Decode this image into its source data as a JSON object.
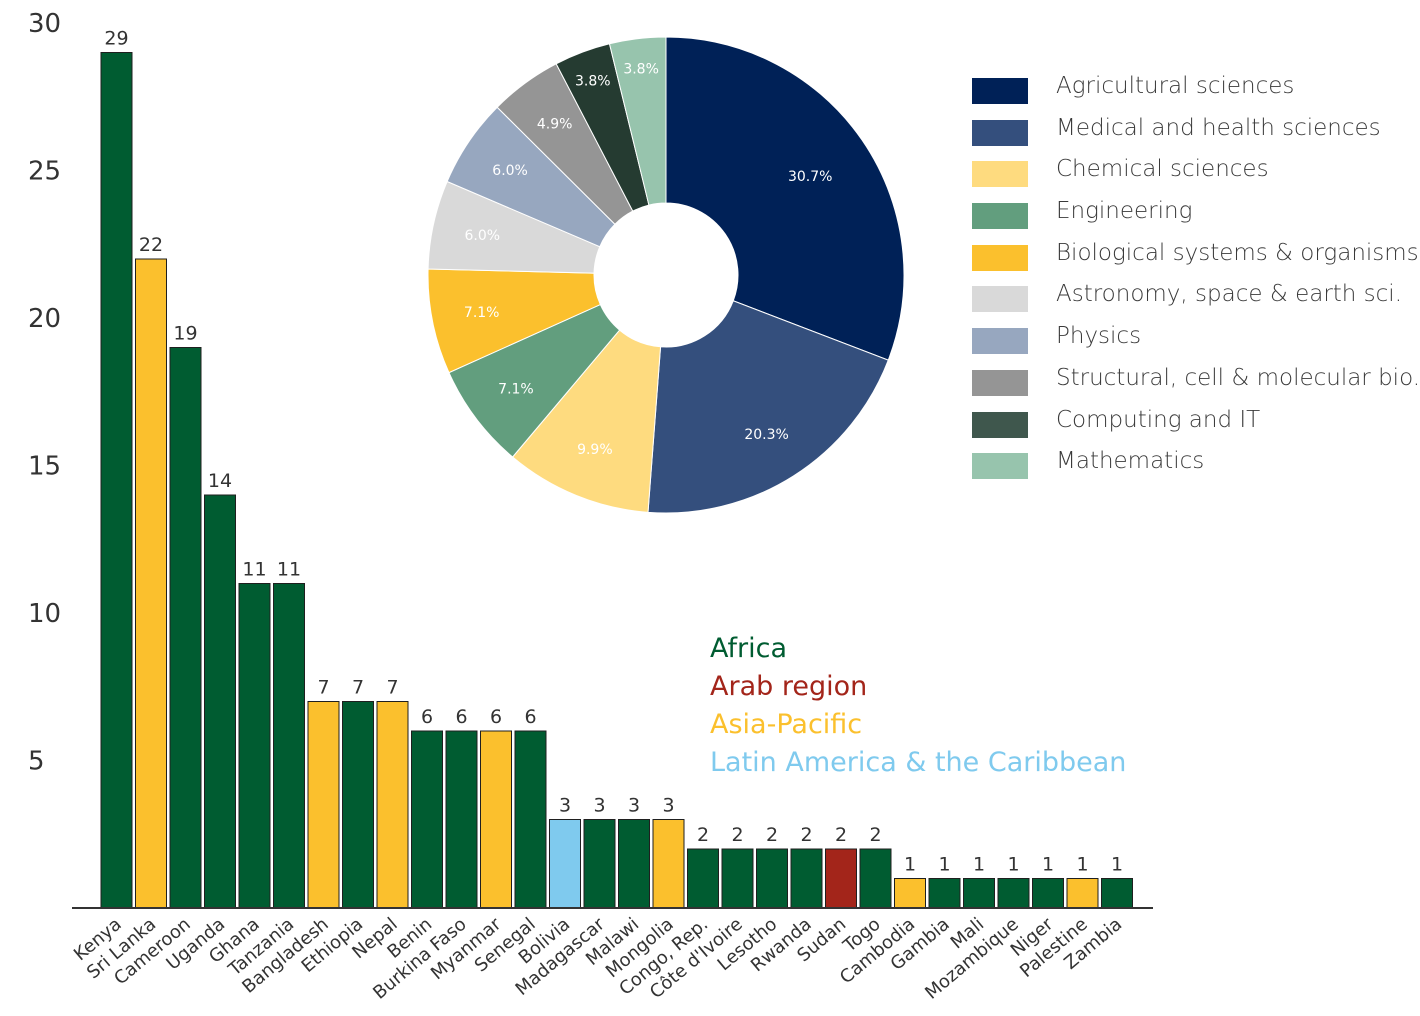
{
  "colors": {
    "africa": "#005c31",
    "arab": "#a3251a",
    "asia": "#fbc02d",
    "latam": "#7fcaee",
    "axis": "#333333"
  },
  "regions": [
    {
      "label": "Africa",
      "color": "#005c31"
    },
    {
      "label": "Arab region",
      "color": "#a3251a"
    },
    {
      "label": "Asia-Pacific",
      "color": "#fbc02d"
    },
    {
      "label": "Latin America & the Caribbean",
      "color": "#7fcaee"
    }
  ],
  "chart_data": [
    {
      "type": "bar",
      "ylim": [
        0,
        30
      ],
      "yticks": [
        5,
        10,
        15,
        20,
        25,
        30
      ],
      "categories": [
        "Kenya",
        "Sri Lanka",
        "Cameroon",
        "Uganda",
        "Ghana",
        "Tanzania",
        "Bangladesh",
        "Ethiopia",
        "Nepal",
        "Benin",
        "Burkina Faso",
        "Myanmar",
        "Senegal",
        "Bolivia",
        "Madagascar",
        "Malawi",
        "Mongolia",
        "Congo, Rep.",
        "Côte d'Ivoire",
        "Lesotho",
        "Rwanda",
        "Sudan",
        "Togo",
        "Cambodia",
        "Gambia",
        "Mali",
        "Mozambique",
        "Niger",
        "Palestine",
        "Zambia"
      ],
      "values": [
        29,
        22,
        19,
        14,
        11,
        11,
        7,
        7,
        7,
        6,
        6,
        6,
        6,
        3,
        3,
        3,
        3,
        2,
        2,
        2,
        2,
        2,
        2,
        1,
        1,
        1,
        1,
        1,
        1,
        1
      ],
      "value_labels": [
        "29",
        "22",
        "19",
        "14",
        "11",
        "11",
        "7",
        "7",
        "7",
        "6",
        "6",
        "6",
        "6",
        "3",
        "3",
        "3",
        "3",
        "2",
        "2",
        "2",
        "2",
        "2",
        "2",
        "1",
        "1",
        "1",
        "1",
        "1",
        "1",
        "1"
      ],
      "region": [
        "africa",
        "asia",
        "africa",
        "africa",
        "africa",
        "africa",
        "asia",
        "africa",
        "asia",
        "africa",
        "africa",
        "asia",
        "africa",
        "latam",
        "africa",
        "africa",
        "asia",
        "africa",
        "africa",
        "africa",
        "africa",
        "arab",
        "africa",
        "asia",
        "africa",
        "africa",
        "africa",
        "africa",
        "asia",
        "africa"
      ]
    },
    {
      "type": "pie",
      "donut": true,
      "labels": [
        "Agricultural sciences",
        "Medical and health sciences",
        "Chemical sciences",
        "Engineering",
        "Biological systems & organisms",
        "Astronomy, space & earth sci.",
        "Physics",
        "Structural, cell & molecular bio.",
        "Computing and IT",
        "Mathematics"
      ],
      "values": [
        30.7,
        20.3,
        9.9,
        7.1,
        7.1,
        6.0,
        6.0,
        4.9,
        3.8,
        3.8
      ],
      "value_labels": [
        "30.7%",
        "20.3%",
        "9.9%",
        "7.1%",
        "7.1%",
        "6.0%",
        "6.0%",
        "4.9%",
        "3.8%",
        "3.8%"
      ],
      "colors": [
        "#002157",
        "#344f7d",
        "#fedb7f",
        "#629e7e",
        "#fbc02d",
        "#d9d9d9",
        "#97a7bf",
        "#959595",
        "#253b31",
        "#97c4ad"
      ],
      "legend_colors": [
        "#002157",
        "#344f7d",
        "#fedb7f",
        "#629e7e",
        "#fbc02d",
        "#d9d9d9",
        "#97a7bf",
        "#959595",
        "#3f574d",
        "#97c4ad"
      ],
      "label_colors": [
        "#ffffff",
        "#ffffff",
        "#ffffff",
        "#ffffff",
        "#ffffff",
        "#ffffff",
        "#ffffff",
        "#ffffff",
        "#ffffff",
        "#ffffff"
      ],
      "legend_position": "right"
    }
  ]
}
